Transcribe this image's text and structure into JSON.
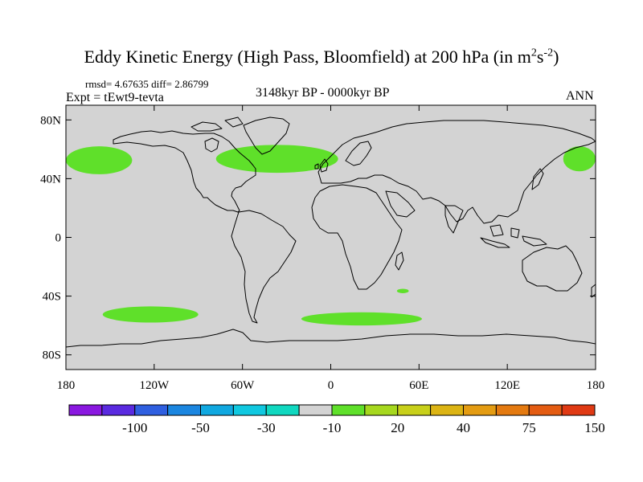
{
  "title": {
    "text": "Eddy Kinetic Energy (High Pass, Bloomfield) at 200 hPa (in m",
    "sup1": "2",
    "mid": "s",
    "sup2": "-2",
    "end": ")"
  },
  "stats": "rmsd= 4.67635 diff= 2.86799",
  "experiment": "Expt = tEwt9-tevta",
  "period": "3148kyr BP - 0000kyr BP",
  "season": "ANN",
  "map": {
    "ocean_color": "#d3d3d3",
    "anomaly_color": "#5fe02a",
    "lat_labels": [
      {
        "lat": 80,
        "text": "80N"
      },
      {
        "lat": 40,
        "text": "40N"
      },
      {
        "lat": 0,
        "text": "0"
      },
      {
        "lat": -40,
        "text": "40S"
      },
      {
        "lat": -80,
        "text": "80S"
      }
    ],
    "lon_labels": [
      {
        "lon": -180,
        "text": "180"
      },
      {
        "lon": -120,
        "text": "120W"
      },
      {
        "lon": -60,
        "text": "60W"
      },
      {
        "lon": 0,
        "text": "0"
      },
      {
        "lon": 60,
        "text": "60E"
      },
      {
        "lon": 120,
        "text": "120E"
      },
      {
        "lon": 180,
        "text": "180"
      }
    ],
    "anomaly_regions": [
      {
        "name": "north-pacific-east",
        "lon_min": -180,
        "lon_max": -135,
        "lat_min": 43,
        "lat_max": 62
      },
      {
        "name": "north-pacific-west",
        "lon_min": 158,
        "lon_max": 180,
        "lat_min": 45,
        "lat_max": 62
      },
      {
        "name": "north-atlantic",
        "lon_min": -78,
        "lon_max": 5,
        "lat_min": 44,
        "lat_max": 63
      },
      {
        "name": "south-pacific",
        "lon_min": -155,
        "lon_max": -90,
        "lat_min": -58,
        "lat_max": -47
      },
      {
        "name": "south-atlantic-indian",
        "lon_min": -20,
        "lon_max": 62,
        "lat_min": -60,
        "lat_max": -51
      },
      {
        "name": "south-indian-speck",
        "lon_min": 45,
        "lon_max": 53,
        "lat_min": -38,
        "lat_max": -35
      }
    ]
  },
  "colorbar": {
    "colors": [
      "#8a18e0",
      "#5a2ae0",
      "#2f5fe0",
      "#1b86e0",
      "#10a8e0",
      "#10c8e0",
      "#10d8c0",
      "#d3d3d3",
      "#5fe02a",
      "#a6d81e",
      "#c8d01a",
      "#dcb414",
      "#e49c12",
      "#e47a10",
      "#e45c12",
      "#e03a14"
    ],
    "labels": [
      {
        "after_box": 2,
        "text": "-100"
      },
      {
        "after_box": 4,
        "text": "-50"
      },
      {
        "after_box": 6,
        "text": "-30"
      },
      {
        "after_box": 8,
        "text": "-10"
      },
      {
        "after_box": 10,
        "text": "20"
      },
      {
        "after_box": 12,
        "text": "40"
      },
      {
        "after_box": 14,
        "text": "75"
      },
      {
        "after_box": 16,
        "text": "150"
      }
    ]
  }
}
